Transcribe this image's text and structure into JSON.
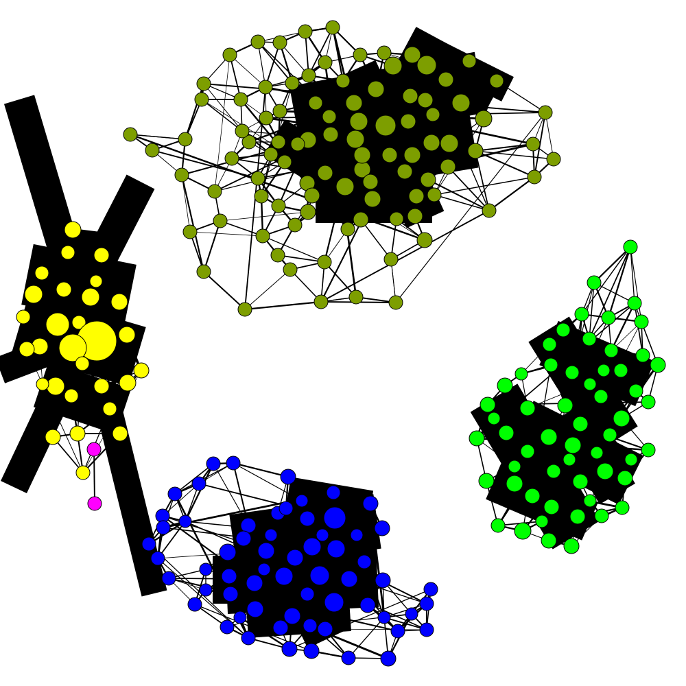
{
  "graph": {
    "type": "network-graph",
    "background": "#ffffff",
    "edge_color": "#000000",
    "node_outline": "#000000",
    "communities": [
      {
        "name": "olive",
        "color": "#7d9e00",
        "node_count": 95
      },
      {
        "name": "yellow",
        "color": "#ffff00",
        "node_count": 29
      },
      {
        "name": "green",
        "color": "#00ff00",
        "node_count": 56
      },
      {
        "name": "blue",
        "color": "#0000ff",
        "node_count": 62
      },
      {
        "name": "magenta",
        "color": "#ff00ff",
        "node_count": 2
      }
    ]
  }
}
